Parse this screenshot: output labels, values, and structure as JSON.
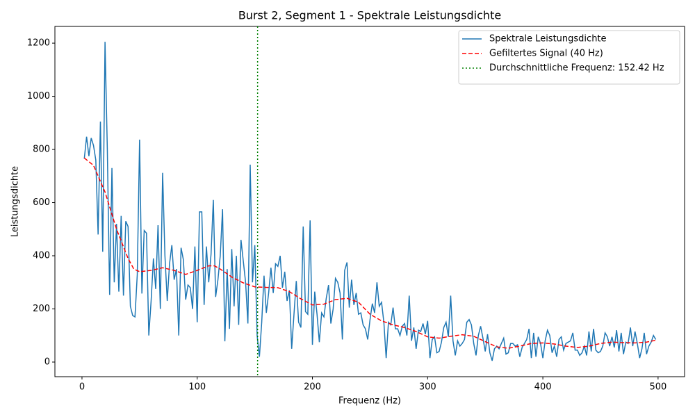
{
  "chart_data": {
    "type": "line",
    "title": "Burst 2, Segment 1 - Spektrale Leistungsdichte",
    "xlabel": "Frequenz (Hz)",
    "ylabel": "Leistungsdichte",
    "xlim": [
      -23.5,
      523
    ],
    "ylim": [
      -55,
      1263
    ],
    "xticks": [
      0,
      100,
      200,
      300,
      400,
      500
    ],
    "yticks": [
      0,
      200,
      400,
      600,
      800,
      1000,
      1200
    ],
    "legend": "upper right",
    "series": [
      {
        "name": "Spektrale Leistungsdichte",
        "color": "#1f77b4",
        "style": "solid",
        "x": [
          2,
          4,
          6,
          8,
          10,
          12,
          14,
          16,
          18,
          20,
          22,
          24,
          26,
          28,
          30,
          32,
          34,
          36,
          38,
          40,
          42,
          44,
          46,
          48,
          50,
          52,
          54,
          56,
          58,
          60,
          62,
          64,
          66,
          68,
          70,
          72,
          74,
          76,
          78,
          80,
          82,
          84,
          86,
          88,
          90,
          92,
          94,
          96,
          98,
          100,
          102,
          104,
          106,
          108,
          110,
          112,
          114,
          116,
          118,
          120,
          122,
          124,
          126,
          128,
          130,
          132,
          134,
          136,
          138,
          140,
          142,
          144,
          146,
          148,
          150,
          152,
          154,
          156,
          158,
          160,
          162,
          164,
          166,
          168,
          170,
          172,
          174,
          176,
          178,
          180,
          182,
          184,
          186,
          188,
          190,
          192,
          194,
          196,
          198,
          200,
          202,
          204,
          206,
          208,
          210,
          212,
          214,
          216,
          218,
          220,
          222,
          224,
          226,
          228,
          230,
          232,
          234,
          236,
          238,
          240,
          242,
          244,
          246,
          248,
          250,
          252,
          254,
          256,
          258,
          260,
          262,
          264,
          266,
          268,
          270,
          272,
          274,
          276,
          278,
          280,
          282,
          284,
          286,
          288,
          290,
          292,
          294,
          296,
          298,
          300,
          302,
          304,
          306,
          308,
          310,
          312,
          314,
          316,
          318,
          320,
          322,
          324,
          326,
          328,
          330,
          332,
          334,
          336,
          338,
          340,
          342,
          344,
          346,
          348,
          350,
          352,
          354,
          356,
          358,
          360,
          362,
          364,
          366,
          368,
          370,
          372,
          374,
          376,
          378,
          380,
          382,
          384,
          386,
          388,
          390,
          392,
          394,
          396,
          398,
          400,
          402,
          404,
          406,
          408,
          410,
          412,
          414,
          416,
          418,
          420,
          422,
          424,
          426,
          428,
          430,
          432,
          434,
          436,
          438,
          440,
          442,
          444,
          446,
          448,
          450,
          452,
          454,
          456,
          458,
          460,
          462,
          464,
          466,
          468,
          470,
          472,
          474,
          476,
          478,
          480,
          482,
          484,
          486,
          488,
          490,
          492,
          494,
          496,
          498
        ],
        "values": [
          765,
          848,
          775,
          843,
          815,
          760,
          480,
          905,
          415,
          1205,
          800,
          253,
          730,
          300,
          520,
          265,
          550,
          250,
          530,
          510,
          210,
          175,
          170,
          330,
          837,
          258,
          495,
          485,
          100,
          230,
          390,
          275,
          515,
          200,
          712,
          400,
          230,
          370,
          440,
          310,
          350,
          100,
          430,
          385,
          235,
          290,
          280,
          200,
          435,
          150,
          565,
          565,
          215,
          435,
          300,
          405,
          610,
          245,
          310,
          400,
          575,
          78,
          350,
          125,
          425,
          210,
          400,
          140,
          460,
          380,
          300,
          145,
          743,
          300,
          440,
          100,
          20,
          150,
          325,
          185,
          260,
          355,
          260,
          370,
          360,
          400,
          280,
          340,
          230,
          270,
          50,
          180,
          305,
          150,
          130,
          510,
          190,
          180,
          533,
          65,
          265,
          180,
          75,
          185,
          170,
          240,
          290,
          145,
          200,
          315,
          300,
          260,
          85,
          345,
          375,
          205,
          310,
          215,
          260,
          180,
          185,
          140,
          125,
          85,
          160,
          220,
          185,
          300,
          210,
          225,
          150,
          15,
          150,
          140,
          205,
          125,
          125,
          100,
          135,
          145,
          100,
          250,
          80,
          130,
          50,
          120,
          115,
          145,
          105,
          155,
          15,
          85,
          95,
          35,
          40,
          75,
          130,
          150,
          95,
          250,
          80,
          25,
          80,
          60,
          70,
          85,
          150,
          160,
          140,
          70,
          25,
          100,
          135,
          90,
          40,
          105,
          35,
          5,
          50,
          60,
          50,
          70,
          90,
          30,
          35,
          70,
          70,
          60,
          65,
          20,
          55,
          70,
          85,
          125,
          15,
          110,
          20,
          95,
          70,
          15,
          80,
          120,
          100,
          35,
          60,
          20,
          85,
          95,
          45,
          70,
          75,
          80,
          110,
          45,
          45,
          25,
          35,
          60,
          25,
          115,
          40,
          125,
          45,
          35,
          40,
          60,
          110,
          95,
          60,
          95,
          55,
          120,
          40,
          110,
          30,
          75,
          70,
          130,
          60,
          115,
          70,
          15,
          50,
          110,
          30,
          60,
          75,
          100,
          85
        ]
      },
      {
        "name": "Gefiltertes Signal (40 Hz)",
        "color": "#ff0000",
        "style": "dashed",
        "x": [
          2,
          10,
          20,
          30,
          40,
          45,
          50,
          60,
          70,
          80,
          90,
          100,
          110,
          115,
          120,
          130,
          140,
          150,
          160,
          170,
          180,
          190,
          200,
          210,
          220,
          230,
          240,
          250,
          260,
          270,
          280,
          290,
          300,
          310,
          320,
          330,
          340,
          350,
          360,
          370,
          380,
          390,
          400,
          410,
          420,
          430,
          440,
          450,
          460,
          470,
          480,
          490,
          498
        ],
        "values": [
          768,
          740,
          640,
          500,
          390,
          350,
          340,
          345,
          355,
          345,
          330,
          345,
          362,
          362,
          350,
          320,
          298,
          283,
          281,
          280,
          265,
          238,
          215,
          218,
          235,
          240,
          225,
          180,
          155,
          140,
          130,
          115,
          95,
          90,
          97,
          103,
          97,
          77,
          57,
          52,
          60,
          70,
          72,
          68,
          60,
          55,
          60,
          70,
          75,
          73,
          72,
          75,
          82
        ]
      }
    ],
    "vline": {
      "name": "Durchschnittliche Frequenz: 152.42 Hz",
      "x": 152.42,
      "color": "#008000",
      "style": "dotted"
    }
  }
}
